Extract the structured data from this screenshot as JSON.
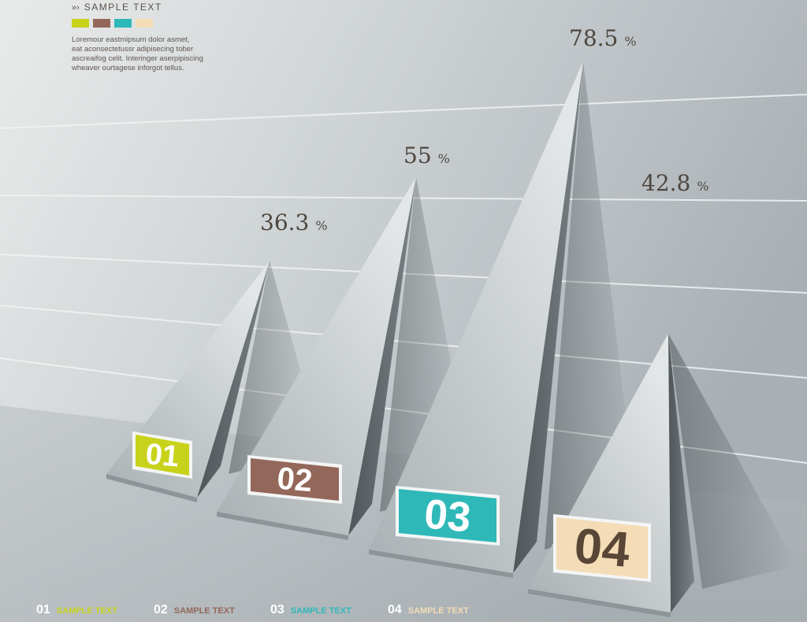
{
  "header": {
    "chevrons": "»›",
    "title": "SAMPLE TEXT",
    "swatch_colors": [
      "#c8d21a",
      "#93685a",
      "#2fb8b8",
      "#f3dcb6"
    ],
    "body_lines": [
      "Loremour eastmipsum dolor asmet,",
      "eat aconsectetussr adipisecing tober",
      "ascreaifog celit. Interinger aserpipiscing",
      "wheaver ourtagese  inforgot tellus."
    ]
  },
  "chart_data": {
    "type": "bar",
    "categories": [
      "01",
      "02",
      "03",
      "04"
    ],
    "values": [
      36.3,
      55,
      78.5,
      42.8
    ],
    "value_unit": "%",
    "colors": [
      "#c8d21a",
      "#93685a",
      "#2fb8b8",
      "#f3dcb6"
    ],
    "label_text_colors": [
      "#ffffff",
      "#ffffff",
      "#ffffff",
      "#5a4636"
    ],
    "grid": true
  },
  "legend": [
    {
      "num": "01",
      "label": "SAMPLE TEXT",
      "color": "#c8d21a"
    },
    {
      "num": "02",
      "label": "SAMPLE TEXT",
      "color": "#93685a"
    },
    {
      "num": "03",
      "label": "SAMPLE TEXT",
      "color": "#2fb8b8"
    },
    {
      "num": "04",
      "label": "SAMPLE TEXT",
      "color": "#f3dcb6"
    }
  ]
}
